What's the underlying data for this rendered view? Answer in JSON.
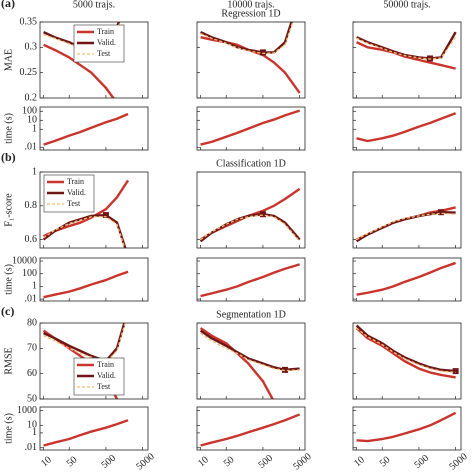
{
  "column_headers": [
    "5000 trajs.",
    "10000 trajs.",
    "50000 trajs."
  ],
  "panel_labels": [
    "(a)",
    "(b)",
    "(c)"
  ],
  "chart_data": [
    {
      "type": "line",
      "ylabel": "MAE",
      "legend": "upper right",
      "x": [
        10,
        20,
        50,
        100,
        200,
        500,
        1000,
        2000,
        5000
      ],
      "xlim": [
        8,
        7000
      ],
      "xticks": [
        10,
        50,
        500,
        5000
      ],
      "ylim": [
        0.2,
        0.35
      ],
      "yticks": [
        0.2,
        0.25,
        0.3,
        0.35
      ],
      "series": [
        {
          "name": "Train",
          "color": "#c9342c",
          "values": [
            0.305,
            0.295,
            0.28,
            0.265,
            0.25,
            0.22,
            0.19,
            0.15,
            null
          ]
        },
        {
          "name": "Valid.",
          "color": "#6e1616",
          "min_marker": true,
          "values": [
            0.33,
            0.32,
            0.31,
            0.3,
            0.295,
            0.3,
            0.34,
            0.4,
            null
          ]
        },
        {
          "name": "Test",
          "color": "#f2bd72",
          "dash": true,
          "values": [
            0.325,
            0.318,
            0.307,
            0.299,
            0.294,
            0.298,
            0.335,
            0.39,
            null
          ]
        }
      ]
    },
    {
      "type": "line",
      "ylabel": "time (s)",
      "log_y": true,
      "x": [
        10,
        20,
        50,
        100,
        200,
        500,
        1000,
        2000,
        5000
      ],
      "xlim": [
        8,
        7000
      ],
      "xticks": [
        10,
        50,
        500,
        5000
      ],
      "ylim": [
        0.005,
        300
      ],
      "yticks": [
        {
          "value": 0.01,
          "label": ".01"
        },
        1,
        10,
        100
      ],
      "color": "#c9342c",
      "values": [
        0.02,
        0.05,
        0.2,
        0.5,
        1.5,
        6,
        15,
        50,
        null
      ]
    },
    {
      "type": "line",
      "title": "Regression 1D",
      "x": [
        10,
        20,
        50,
        100,
        200,
        500,
        1000,
        2000,
        5000
      ],
      "xlim": [
        8,
        7000
      ],
      "xticks": [
        10,
        50,
        500,
        5000
      ],
      "ylim": [
        0.2,
        0.35
      ],
      "yticks": [
        0.2,
        0.25,
        0.3,
        0.35
      ],
      "series": [
        {
          "color": "#c9342c",
          "values": [
            0.32,
            0.315,
            0.31,
            0.305,
            0.295,
            0.285,
            0.27,
            0.25,
            0.21
          ]
        },
        {
          "color": "#6e1616",
          "min_marker": true,
          "values": [
            0.33,
            0.32,
            0.31,
            0.3,
            0.295,
            0.29,
            0.29,
            0.31,
            0.4
          ]
        },
        {
          "color": "#f2bd72",
          "dash": true,
          "values": [
            0.327,
            0.318,
            0.308,
            0.299,
            0.293,
            0.288,
            0.289,
            0.305,
            0.39
          ]
        }
      ]
    },
    {
      "type": "line",
      "log_y": true,
      "x": [
        10,
        20,
        50,
        100,
        200,
        500,
        1000,
        2000,
        5000
      ],
      "xlim": [
        8,
        7000
      ],
      "xticks": [
        10,
        50,
        500,
        5000
      ],
      "ylim": [
        0.005,
        300
      ],
      "yticks": [
        0.01,
        1,
        10,
        100
      ],
      "color": "#c9342c",
      "values": [
        0.02,
        0.04,
        0.15,
        0.4,
        1.2,
        5,
        12,
        35,
        120
      ]
    },
    {
      "type": "line",
      "x": [
        10,
        20,
        50,
        100,
        200,
        500,
        1000,
        2000,
        5000
      ],
      "xlim": [
        8,
        7000
      ],
      "xticks": [
        10,
        50,
        500,
        5000
      ],
      "ylim": [
        0.2,
        0.35
      ],
      "yticks": [
        0.2,
        0.25,
        0.3,
        0.35
      ],
      "series": [
        {
          "color": "#c9342c",
          "values": [
            0.31,
            0.3,
            0.295,
            0.29,
            0.282,
            0.275,
            0.27,
            0.265,
            0.258
          ]
        },
        {
          "color": "#6e1616",
          "min_marker": true,
          "values": [
            0.32,
            0.31,
            0.3,
            0.292,
            0.285,
            0.28,
            0.278,
            0.28,
            0.33
          ]
        },
        {
          "color": "#f2bd72",
          "dash": true,
          "values": [
            0.318,
            0.308,
            0.298,
            0.29,
            0.284,
            0.279,
            0.277,
            0.279,
            0.32
          ]
        }
      ]
    },
    {
      "type": "line",
      "log_y": true,
      "x": [
        10,
        20,
        50,
        100,
        200,
        500,
        1000,
        2000,
        5000
      ],
      "xlim": [
        8,
        7000
      ],
      "xticks": [
        10,
        50,
        500,
        5000
      ],
      "ylim": [
        0.005,
        300
      ],
      "yticks": [
        0.01,
        1,
        10,
        100
      ],
      "color": "#c9342c",
      "values": [
        0.1,
        0.05,
        0.1,
        0.2,
        0.5,
        2,
        5,
        15,
        60
      ]
    },
    {
      "type": "line",
      "ylabel": "F₁-score",
      "legend": "upper left",
      "x": [
        10,
        20,
        50,
        100,
        200,
        500,
        1000,
        2000,
        5000
      ],
      "xlim": [
        8,
        7000
      ],
      "xticks": [
        10,
        50,
        500,
        5000
      ],
      "ylim": [
        0.55,
        1
      ],
      "yticks": [
        0.6,
        0.8,
        1
      ],
      "series": [
        {
          "name": "Train",
          "color": "#c9342c",
          "values": [
            0.62,
            0.65,
            0.68,
            0.7,
            0.73,
            0.78,
            0.85,
            0.95,
            null
          ]
        },
        {
          "name": "Valid.",
          "color": "#6e1616",
          "min_marker": false,
          "max_marker": true,
          "values": [
            0.6,
            0.65,
            0.7,
            0.72,
            0.74,
            0.745,
            0.7,
            0.5,
            null
          ]
        },
        {
          "name": "Test",
          "color": "#f2bd72",
          "dash": true,
          "values": [
            0.61,
            0.655,
            0.695,
            0.715,
            0.735,
            0.735,
            0.69,
            0.49,
            null
          ]
        }
      ]
    },
    {
      "type": "line",
      "ylabel": "time (s)",
      "log_y": true,
      "x": [
        10,
        20,
        50,
        100,
        200,
        500,
        1000,
        2000,
        5000
      ],
      "xlim": [
        8,
        7000
      ],
      "xticks": [
        10,
        50,
        500,
        5000
      ],
      "ylim": [
        0.005,
        30000
      ],
      "yticks": [
        {
          "value": 0.01,
          "label": ".01"
        },
        1,
        100,
        10000
      ],
      "color": "#c9342c",
      "values": [
        0.02,
        0.05,
        0.15,
        0.5,
        2,
        10,
        50,
        200,
        null
      ]
    },
    {
      "type": "line",
      "title": "Classification 1D",
      "x": [
        10,
        20,
        50,
        100,
        200,
        500,
        1000,
        2000,
        5000
      ],
      "xlim": [
        8,
        7000
      ],
      "xticks": [
        10,
        50,
        500,
        5000
      ],
      "ylim": [
        0.55,
        1
      ],
      "yticks": [
        0.6,
        0.8,
        1
      ],
      "series": [
        {
          "color": "#c9342c",
          "values": [
            0.6,
            0.64,
            0.68,
            0.71,
            0.74,
            0.77,
            0.8,
            0.84,
            0.9
          ]
        },
        {
          "color": "#6e1616",
          "max_marker": true,
          "values": [
            0.59,
            0.64,
            0.69,
            0.72,
            0.74,
            0.75,
            0.74,
            0.7,
            0.6
          ]
        },
        {
          "color": "#f2bd72",
          "dash": true,
          "values": [
            0.6,
            0.645,
            0.69,
            0.72,
            0.735,
            0.745,
            0.735,
            0.69,
            0.59
          ]
        }
      ]
    },
    {
      "type": "line",
      "log_y": true,
      "x": [
        10,
        20,
        50,
        100,
        200,
        500,
        1000,
        2000,
        5000
      ],
      "xlim": [
        8,
        7000
      ],
      "xticks": [
        10,
        50,
        500,
        5000
      ],
      "ylim": [
        0.005,
        30000
      ],
      "yticks": [
        0.01,
        1,
        100,
        10000
      ],
      "color": "#c9342c",
      "values": [
        0.03,
        0.08,
        0.3,
        1,
        5,
        30,
        150,
        600,
        3000
      ]
    },
    {
      "type": "line",
      "x": [
        10,
        20,
        50,
        100,
        200,
        500,
        1000,
        2000,
        5000
      ],
      "xlim": [
        8,
        7000
      ],
      "xticks": [
        10,
        50,
        500,
        5000
      ],
      "ylim": [
        0.55,
        1
      ],
      "yticks": [
        0.6,
        0.8,
        1
      ],
      "series": [
        {
          "color": "#c9342c",
          "values": [
            0.6,
            0.63,
            0.67,
            0.7,
            0.72,
            0.74,
            0.76,
            0.77,
            0.79
          ]
        },
        {
          "color": "#6e1616",
          "max_marker": true,
          "values": [
            0.59,
            0.63,
            0.67,
            0.7,
            0.72,
            0.74,
            0.75,
            0.762,
            0.76
          ]
        },
        {
          "color": "#f2bd72",
          "dash": true,
          "values": [
            0.6,
            0.635,
            0.675,
            0.705,
            0.725,
            0.74,
            0.75,
            0.755,
            0.75
          ]
        }
      ]
    },
    {
      "type": "line",
      "log_y": true,
      "x": [
        10,
        20,
        50,
        100,
        200,
        500,
        1000,
        2000,
        5000
      ],
      "xlim": [
        8,
        7000
      ],
      "xticks": [
        10,
        50,
        500,
        5000
      ],
      "ylim": [
        0.005,
        30000
      ],
      "yticks": [
        0.01,
        1,
        100,
        10000
      ],
      "color": "#c9342c",
      "values": [
        0.05,
        0.1,
        0.3,
        1,
        5,
        30,
        150,
        800,
        5000
      ]
    },
    {
      "type": "line",
      "ylabel": "RMSE",
      "legend": "lower right",
      "x": [
        10,
        20,
        50,
        100,
        200,
        500,
        1000,
        2000,
        5000
      ],
      "xlim": [
        8,
        7000
      ],
      "xticks": [
        10,
        50,
        500,
        5000
      ],
      "ylim": [
        50,
        80
      ],
      "yticks": [
        50,
        60,
        70,
        80
      ],
      "series": [
        {
          "name": "Train",
          "color": "#c9342c",
          "values": [
            77,
            74,
            70,
            67,
            64,
            58,
            50,
            null,
            null
          ]
        },
        {
          "name": "Valid.",
          "color": "#6e1616",
          "min_marker": true,
          "values": [
            76,
            74,
            71,
            69,
            67,
            65,
            70,
            85,
            null
          ]
        },
        {
          "name": "Test",
          "color": "#f2bd72",
          "dash": true,
          "values": [
            75,
            73,
            70,
            68,
            66.5,
            64.5,
            69,
            84,
            null
          ]
        }
      ]
    },
    {
      "type": "line",
      "ylabel": "time (s)",
      "log_y": true,
      "x": [
        10,
        20,
        50,
        100,
        200,
        500,
        1000,
        2000,
        5000
      ],
      "xlim": [
        8,
        7000
      ],
      "xticks": [
        10,
        50,
        500,
        5000
      ],
      "ylim": [
        0.005,
        3000
      ],
      "yticks": [
        {
          "value": 0.01,
          "label": ".01"
        },
        1,
        10,
        1000
      ],
      "color": "#c9342c",
      "values": [
        0.02,
        0.05,
        0.15,
        0.5,
        1.5,
        5,
        15,
        50,
        null
      ]
    },
    {
      "type": "line",
      "title": "Segmentation 1D",
      "x": [
        10,
        20,
        50,
        100,
        200,
        500,
        1000,
        2000,
        5000
      ],
      "xlim": [
        8,
        7000
      ],
      "xticks": [
        10,
        50,
        500,
        5000
      ],
      "ylim": [
        50,
        80
      ],
      "yticks": [
        50,
        60,
        70,
        80
      ],
      "series": [
        {
          "color": "#c9342c",
          "values": [
            78,
            75,
            72,
            68,
            64,
            57,
            49,
            null,
            null
          ]
        },
        {
          "color": "#6e1616",
          "min_marker": true,
          "values": [
            77,
            74,
            71,
            68.5,
            66,
            64,
            62.5,
            61.5,
            62
          ]
        },
        {
          "color": "#f2bd72",
          "dash": true,
          "values": [
            76,
            73,
            70,
            68,
            65.5,
            63.5,
            62,
            61.2,
            61.5
          ]
        }
      ]
    },
    {
      "type": "line",
      "log_y": true,
      "x": [
        10,
        20,
        50,
        100,
        200,
        500,
        1000,
        2000,
        5000
      ],
      "xlim": [
        8,
        7000
      ],
      "xticks": [
        10,
        50,
        500,
        5000
      ],
      "ylim": [
        0.005,
        3000
      ],
      "yticks": [
        0.01,
        1,
        10,
        1000
      ],
      "color": "#c9342c",
      "values": [
        0.02,
        0.05,
        0.15,
        0.4,
        1.2,
        5,
        15,
        50,
        300
      ]
    },
    {
      "type": "line",
      "x": [
        10,
        20,
        50,
        100,
        200,
        500,
        1000,
        2000,
        5000
      ],
      "xlim": [
        8,
        7000
      ],
      "xticks": [
        10,
        50,
        500,
        5000
      ],
      "ylim": [
        50,
        80
      ],
      "yticks": [
        50,
        60,
        70,
        80
      ],
      "series": [
        {
          "color": "#c9342c",
          "values": [
            78,
            74,
            71,
            68,
            65,
            62,
            60.5,
            59.5,
            58.5
          ]
        },
        {
          "color": "#6e1616",
          "min_marker": true,
          "values": [
            79,
            75,
            72,
            69,
            66.5,
            64,
            62.5,
            61.5,
            61
          ]
        },
        {
          "color": "#f2bd72",
          "dash": true,
          "values": [
            78,
            74.5,
            71.5,
            68.5,
            66,
            63.5,
            62,
            61,
            60.5
          ]
        }
      ]
    },
    {
      "type": "line",
      "log_y": true,
      "x": [
        10,
        20,
        50,
        100,
        200,
        500,
        1000,
        2000,
        5000
      ],
      "xlim": [
        8,
        7000
      ],
      "xticks": [
        10,
        50,
        500,
        5000
      ],
      "ylim": [
        0.005,
        3000
      ],
      "yticks": [
        0.01,
        1,
        10,
        1000
      ],
      "color": "#c9342c",
      "values": [
        0.1,
        0.08,
        0.15,
        0.3,
        0.8,
        3,
        10,
        50,
        500
      ]
    }
  ]
}
